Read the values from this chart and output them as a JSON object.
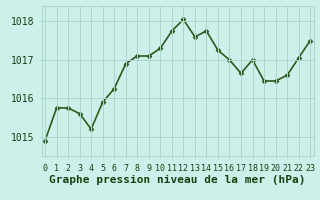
{
  "x": [
    0,
    1,
    2,
    3,
    4,
    5,
    6,
    7,
    8,
    9,
    10,
    11,
    12,
    13,
    14,
    15,
    16,
    17,
    18,
    19,
    20,
    21,
    22,
    23
  ],
  "y": [
    1014.9,
    1015.75,
    1015.75,
    1015.6,
    1015.2,
    1015.9,
    1016.25,
    1016.9,
    1017.1,
    1017.1,
    1017.3,
    1017.75,
    1018.05,
    1017.6,
    1017.75,
    1017.25,
    1017.0,
    1016.65,
    1017.0,
    1016.45,
    1016.45,
    1016.6,
    1017.05,
    1017.5
  ],
  "line_color": "#2d5a1b",
  "marker": "D",
  "marker_size": 2.5,
  "bg_color": "#cff0ea",
  "grid_color": "#a8d8d0",
  "text_color": "#1a4010",
  "xlabel": "Graphe pression niveau de la mer (hPa)",
  "xlabel_fontsize": 8,
  "yticks": [
    1015,
    1016,
    1017,
    1018
  ],
  "xticks": [
    0,
    1,
    2,
    3,
    4,
    5,
    6,
    7,
    8,
    9,
    10,
    11,
    12,
    13,
    14,
    15,
    16,
    17,
    18,
    19,
    20,
    21,
    22,
    23
  ],
  "ylim": [
    1014.5,
    1018.4
  ],
  "xlim": [
    -0.3,
    23.3
  ],
  "ytick_fontsize": 7,
  "xtick_fontsize": 6,
  "linewidth": 1.2
}
